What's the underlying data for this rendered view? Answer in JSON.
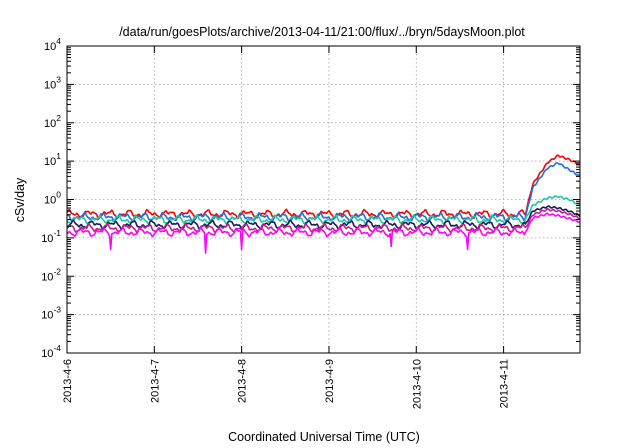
{
  "chart_data": {
    "type": "line",
    "title": "/data/run/goesPlots/archive/2013-04-11/21:00/flux/../bryn/5daysMoon.plot",
    "xlabel": "Coordinated Universal Time (UTC)",
    "ylabel": "cSv/day",
    "y_scale": "log",
    "ylim": [
      0.0001,
      10000
    ],
    "y_ticks": [
      {
        "base": "10",
        "exp": "-4",
        "value": 0.0001
      },
      {
        "base": "10",
        "exp": "-3",
        "value": 0.001
      },
      {
        "base": "10",
        "exp": "-2",
        "value": 0.01
      },
      {
        "base": "10",
        "exp": "-1",
        "value": 0.1
      },
      {
        "base": "10",
        "exp": "0",
        "value": 1
      },
      {
        "base": "10",
        "exp": "1",
        "value": 10
      },
      {
        "base": "10",
        "exp": "2",
        "value": 100
      },
      {
        "base": "10",
        "exp": "3",
        "value": 1000
      },
      {
        "base": "10",
        "exp": "4",
        "value": 10000
      }
    ],
    "x_start": "2013-04-06",
    "x_end": "2013-04-11 21:00",
    "x_ticks": [
      "2013-4-6",
      "2013-4-7",
      "2013-4-8",
      "2013-4-9",
      "2013-4-10",
      "2013-4-11"
    ],
    "grid": true,
    "legend": "none",
    "series": [
      {
        "color": "#ff0000",
        "x": [
          "2013-04-06",
          "2013-04-07",
          "2013-04-08",
          "2013-04-09",
          "2013-04-10",
          "2013-04-11",
          "2013-04-11 06:00",
          "2013-04-11 08:00",
          "2013-04-11 12:00",
          "2013-04-11 15:00",
          "2013-04-11 18:00",
          "2013-04-11 21:00"
        ],
        "y": [
          0.42,
          0.42,
          0.42,
          0.42,
          0.42,
          0.42,
          0.42,
          2.5,
          9,
          14,
          11,
          8
        ]
      },
      {
        "color": "#1f6fe0",
        "x": [
          "2013-04-06",
          "2013-04-07",
          "2013-04-08",
          "2013-04-09",
          "2013-04-10",
          "2013-04-11",
          "2013-04-11 06:00",
          "2013-04-11 08:00",
          "2013-04-11 12:00",
          "2013-04-11 15:00",
          "2013-04-11 18:00",
          "2013-04-11 21:00"
        ],
        "y": [
          0.35,
          0.35,
          0.35,
          0.35,
          0.35,
          0.35,
          0.35,
          2.0,
          6.5,
          9,
          6,
          4
        ]
      },
      {
        "color": "#20c8a0",
        "x": [
          "2013-04-06",
          "2013-04-07",
          "2013-04-08",
          "2013-04-09",
          "2013-04-10",
          "2013-04-11",
          "2013-04-11 06:00",
          "2013-04-11 08:00",
          "2013-04-11 12:00",
          "2013-04-11 15:00",
          "2013-04-11 18:00",
          "2013-04-11 21:00"
        ],
        "y": [
          0.3,
          0.3,
          0.3,
          0.3,
          0.3,
          0.3,
          0.3,
          0.7,
          1.1,
          1.2,
          1.0,
          0.7
        ]
      },
      {
        "color": "#1a1a60",
        "x": [
          "2013-04-06",
          "2013-04-07",
          "2013-04-08",
          "2013-04-09",
          "2013-04-10",
          "2013-04-11",
          "2013-04-11 06:00",
          "2013-04-11 08:00",
          "2013-04-11 12:00",
          "2013-04-11 15:00",
          "2013-04-11 18:00",
          "2013-04-11 21:00"
        ],
        "y": [
          0.22,
          0.22,
          0.22,
          0.22,
          0.22,
          0.22,
          0.22,
          0.5,
          0.65,
          0.6,
          0.5,
          0.38
        ]
      },
      {
        "color": "#c0208a",
        "x": [
          "2013-04-06",
          "2013-04-07",
          "2013-04-08",
          "2013-04-09",
          "2013-04-10",
          "2013-04-11",
          "2013-04-11 06:00",
          "2013-04-11 08:00",
          "2013-04-11 12:00",
          "2013-04-11 15:00",
          "2013-04-11 18:00",
          "2013-04-11 21:00"
        ],
        "y": [
          0.18,
          0.18,
          0.18,
          0.18,
          0.18,
          0.18,
          0.18,
          0.4,
          0.55,
          0.5,
          0.42,
          0.32
        ]
      },
      {
        "color": "#ff00ff",
        "x": [
          "2013-04-06",
          "2013-04-07",
          "2013-04-08",
          "2013-04-09",
          "2013-04-10",
          "2013-04-11",
          "2013-04-11 06:00",
          "2013-04-11 08:00",
          "2013-04-11 12:00",
          "2013-04-11 15:00",
          "2013-04-11 18:00",
          "2013-04-11 21:00"
        ],
        "y": [
          0.14,
          0.14,
          0.14,
          0.14,
          0.14,
          0.14,
          0.14,
          0.33,
          0.42,
          0.38,
          0.32,
          0.26
        ]
      }
    ],
    "dips": [
      {
        "x": "2013-04-06 12:00",
        "y": 0.05
      },
      {
        "x": "2013-04-07 14:00",
        "y": 0.04
      },
      {
        "x": "2013-04-08 00:00",
        "y": 0.05
      },
      {
        "x": "2013-04-09 17:00",
        "y": 0.06
      },
      {
        "x": "2013-04-10 14:00",
        "y": 0.05
      }
    ]
  }
}
